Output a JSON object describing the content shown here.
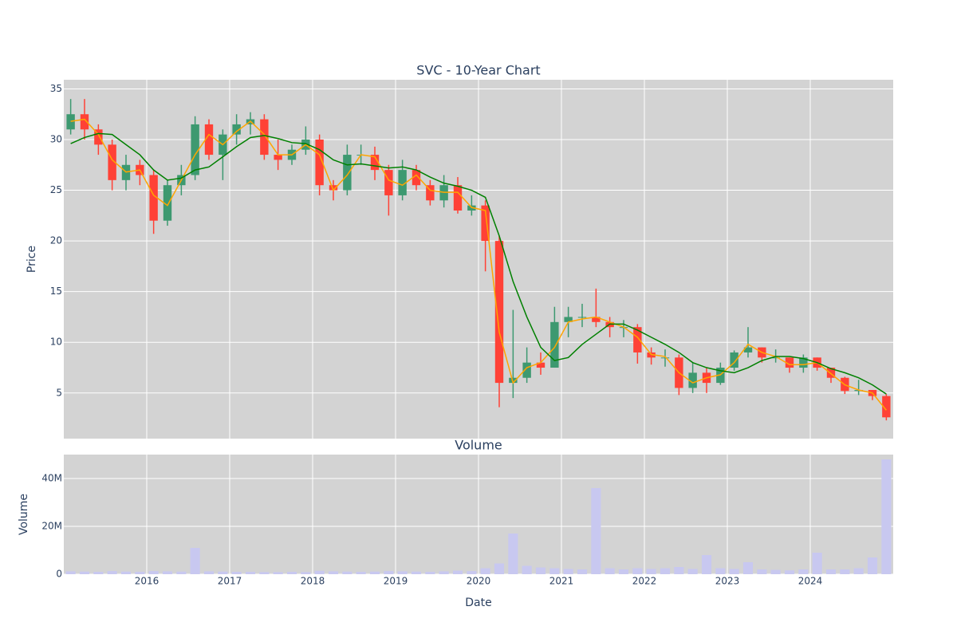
{
  "chart_data": [
    {
      "type": "candlestick",
      "title": "SVC - 10-Year Chart",
      "ylabel": "Price",
      "increasing_color": "#3d9970",
      "decreasing_color": "#ff4136",
      "x": [
        2015.083,
        2015.25,
        2015.417,
        2015.583,
        2015.75,
        2015.917,
        2016.083,
        2016.25,
        2016.417,
        2016.583,
        2016.75,
        2016.917,
        2017.083,
        2017.25,
        2017.417,
        2017.583,
        2017.75,
        2017.917,
        2018.083,
        2018.25,
        2018.417,
        2018.583,
        2018.75,
        2018.917,
        2019.083,
        2019.25,
        2019.417,
        2019.583,
        2019.75,
        2019.917,
        2020.083,
        2020.25,
        2020.417,
        2020.583,
        2020.75,
        2020.917,
        2021.083,
        2021.25,
        2021.417,
        2021.583,
        2021.75,
        2021.917,
        2022.083,
        2022.25,
        2022.417,
        2022.583,
        2022.75,
        2022.917,
        2023.083,
        2023.25,
        2023.417,
        2023.583,
        2023.75,
        2023.917,
        2024.083,
        2024.25,
        2024.417,
        2024.583,
        2024.75,
        2024.917
      ],
      "open": [
        31,
        32.5,
        31,
        29.5,
        26,
        27.5,
        26.5,
        22,
        25.5,
        26.5,
        31.5,
        28.5,
        30.5,
        31.5,
        32,
        28.5,
        28,
        29,
        30,
        25.5,
        25,
        28.5,
        28.5,
        27,
        24.5,
        27,
        25.5,
        24,
        25.5,
        23,
        23.5,
        20,
        6,
        6.5,
        8,
        7.5,
        12,
        12.5,
        12.5,
        12,
        11.5,
        11.5,
        9,
        8.5,
        8.5,
        5.5,
        7,
        6,
        7.5,
        9,
        9.5,
        8.5,
        8.5,
        7.5,
        8.5,
        7.5,
        6.5,
        5.2,
        5.3,
        4.7
      ],
      "high": [
        34,
        34,
        31.5,
        30,
        28.5,
        28,
        27,
        26,
        27.5,
        32.3,
        32,
        31,
        32.5,
        32.7,
        32.5,
        30,
        29.5,
        31.3,
        30.5,
        26,
        29.5,
        29.5,
        29.3,
        27.5,
        28,
        27.5,
        26,
        26.5,
        26.3,
        24.5,
        24,
        20.5,
        13.2,
        9.5,
        9,
        13.5,
        13.5,
        13.8,
        15.3,
        12.5,
        12.2,
        11.8,
        9.5,
        9.3,
        8.8,
        8,
        7.5,
        8,
        9.2,
        11.5,
        9.5,
        9.3,
        8.5,
        8.8,
        8.5,
        7.5,
        6.6,
        6.3,
        5,
        4.9
      ],
      "low": [
        30.5,
        30,
        28.5,
        25,
        25,
        25.5,
        20.7,
        21.5,
        24.5,
        26,
        28,
        26,
        29.5,
        30.5,
        28,
        27,
        27.5,
        28.5,
        24.5,
        24,
        24.5,
        27.5,
        26,
        22.5,
        24,
        25,
        23.5,
        23.3,
        22.7,
        22.5,
        17,
        3.6,
        4.5,
        6,
        6.8,
        7.5,
        10.5,
        11.5,
        11.5,
        10.5,
        10.5,
        7.9,
        7.8,
        7.6,
        4.8,
        5,
        5,
        5.8,
        7.2,
        8.5,
        8,
        8,
        7,
        7,
        7.2,
        6,
        4.9,
        4.8,
        4.3,
        2.3
      ],
      "close": [
        32.5,
        31,
        29.5,
        26,
        27.5,
        26.5,
        22,
        25.5,
        26.5,
        31.5,
        28.5,
        30.5,
        31.5,
        32,
        28.5,
        28,
        29,
        30,
        25.5,
        25,
        28.5,
        28.5,
        27,
        24.5,
        27,
        25.5,
        24,
        25.5,
        23,
        23.5,
        20,
        6,
        6.5,
        8,
        7.5,
        12,
        12.5,
        12.5,
        12,
        11.5,
        11.5,
        9,
        8.5,
        8.5,
        5.5,
        7,
        6,
        7.5,
        9,
        9.5,
        8.5,
        8.5,
        7.5,
        8.5,
        7.5,
        6.5,
        5.2,
        5.3,
        4.7,
        2.6
      ],
      "lines": [
        {
          "color": "#ffa500",
          "values": [
            31.8,
            32,
            30.5,
            28,
            26.8,
            27,
            24.5,
            23.5,
            26,
            28.5,
            30.5,
            29.5,
            30.8,
            31.8,
            30.5,
            28.5,
            28.5,
            29.5,
            28.5,
            25,
            26.5,
            28.5,
            28.3,
            26,
            25.5,
            26.5,
            25,
            24.8,
            24.8,
            23.3,
            23,
            11,
            6,
            7.5,
            8,
            9.5,
            12,
            12.3,
            12.5,
            12,
            11.5,
            10.5,
            8.8,
            8.6,
            7,
            6,
            6.5,
            6.8,
            8,
            9.8,
            9,
            8.6,
            7.8,
            7.8,
            8,
            6.9,
            5.8,
            5.3,
            5,
            3.3
          ]
        },
        {
          "color": "#008000",
          "values": [
            29.6,
            30.2,
            30.6,
            30.5,
            29.5,
            28.5,
            27,
            26,
            26.2,
            27,
            27.3,
            28.3,
            29.3,
            30.2,
            30.4,
            30.1,
            29.7,
            29.6,
            29,
            28,
            27.5,
            27.6,
            27.4,
            27.2,
            27.3,
            27,
            26.3,
            25.7,
            25.4,
            25,
            24.3,
            20.5,
            16,
            12.5,
            9.5,
            8.2,
            8.5,
            9.8,
            10.8,
            11.8,
            11.8,
            11.2,
            10.5,
            9.8,
            9,
            8,
            7.5,
            7.2,
            7,
            7.5,
            8.2,
            8.6,
            8.6,
            8.4,
            8,
            7.4,
            7,
            6.5,
            5.8,
            4.9
          ]
        }
      ],
      "xlim": [
        2015,
        2025
      ],
      "xticks": [
        2016,
        2017,
        2018,
        2019,
        2020,
        2021,
        2022,
        2023,
        2024
      ],
      "ylim": [
        0.5,
        35.9
      ],
      "yticks": [
        5,
        10,
        15,
        20,
        25,
        30,
        35
      ],
      "grid": true
    },
    {
      "type": "bar",
      "title": "Volume",
      "xlabel": "Date",
      "ylabel": "Volume",
      "color": "#c8c8f0",
      "x": [
        2015.083,
        2015.25,
        2015.417,
        2015.583,
        2015.75,
        2015.917,
        2016.083,
        2016.25,
        2016.417,
        2016.583,
        2016.75,
        2016.917,
        2017.083,
        2017.25,
        2017.417,
        2017.583,
        2017.75,
        2017.917,
        2018.083,
        2018.25,
        2018.417,
        2018.583,
        2018.75,
        2018.917,
        2019.083,
        2019.25,
        2019.417,
        2019.583,
        2019.75,
        2019.917,
        2020.083,
        2020.25,
        2020.417,
        2020.583,
        2020.75,
        2020.917,
        2021.083,
        2021.25,
        2021.417,
        2021.583,
        2021.75,
        2021.917,
        2022.083,
        2022.25,
        2022.417,
        2022.583,
        2022.75,
        2022.917,
        2023.083,
        2023.25,
        2023.417,
        2023.583,
        2023.75,
        2023.917,
        2024.083,
        2024.25,
        2024.417,
        2024.583,
        2024.75,
        2024.917
      ],
      "values": [
        1200000,
        1100000,
        1000000,
        1300000,
        1100000,
        1000000,
        1300000,
        1200000,
        1100000,
        11000000,
        1200000,
        1100000,
        1000000,
        1000000,
        900000,
        900000,
        1000000,
        900000,
        1400000,
        1200000,
        1100000,
        1000000,
        1100000,
        1300000,
        1200000,
        1100000,
        1000000,
        1200000,
        1500000,
        1300000,
        2500000,
        4500000,
        17000000,
        3500000,
        2800000,
        2500000,
        2200000,
        2000000,
        36000000,
        2500000,
        2000000,
        2500000,
        2200000,
        2500000,
        3000000,
        2200000,
        8000000,
        2500000,
        2200000,
        5000000,
        2000000,
        1800000,
        1600000,
        2000000,
        9000000,
        2000000,
        2000000,
        2500000,
        7000000,
        48000000
      ],
      "xlim": [
        2015,
        2025
      ],
      "xticks": [
        2016,
        2017,
        2018,
        2019,
        2020,
        2021,
        2022,
        2023,
        2024
      ],
      "ylim": [
        0,
        50000000
      ],
      "yticks": [
        0,
        {
          "value": 20000000,
          "label": "20M"
        },
        {
          "value": 40000000,
          "label": "40M"
        }
      ],
      "grid": true
    }
  ]
}
